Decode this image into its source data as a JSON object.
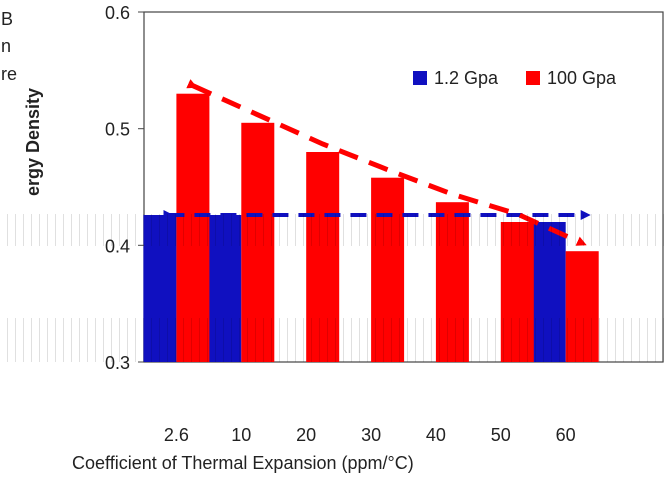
{
  "fragments": {
    "top_left_line_1": "B",
    "top_left_line_2": "n",
    "top_left_line_3": "re"
  },
  "chart_data": {
    "type": "bar",
    "categories": [
      "2.6",
      "10",
      "20",
      "30",
      "40",
      "50",
      "60",
      ""
    ],
    "ylabel": "ergy Density",
    "xlabel": "Coefficient of Thermal Expansion (ppm/°C)",
    "ylim": [
      0.3,
      0.6
    ],
    "y_ticks": [
      "0.3",
      "0.4",
      "0.5",
      "0.6"
    ],
    "legend_position": "top-right",
    "grid": false,
    "series": [
      {
        "name": "1.2 Gpa",
        "color": "#1010c0",
        "values": [
          0.426,
          0.426,
          null,
          null,
          null,
          null,
          0.42,
          null
        ]
      },
      {
        "name": "100 Gpa",
        "color": "#ff0000",
        "values": [
          0.53,
          0.505,
          0.48,
          0.458,
          0.437,
          0.42,
          0.395,
          null
        ]
      }
    ]
  }
}
